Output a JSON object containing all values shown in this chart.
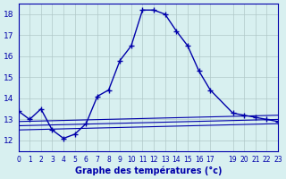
{
  "title": "Graphe des températures (°c)",
  "bg_color": "#d8f0f0",
  "grid_color": "#b0c8c8",
  "line_color": "#0000aa",
  "xlim": [
    0,
    23
  ],
  "ylim": [
    11.5,
    18.5
  ],
  "yticks": [
    12,
    13,
    14,
    15,
    16,
    17,
    18
  ],
  "xticks": [
    0,
    1,
    2,
    3,
    4,
    5,
    6,
    7,
    8,
    9,
    10,
    11,
    12,
    13,
    14,
    15,
    16,
    17,
    19,
    20,
    21,
    22,
    23
  ],
  "xtick_labels": [
    "0",
    "1",
    "2",
    "3",
    "4",
    "5",
    "6",
    "7",
    "8",
    "9",
    "10",
    "11",
    "12",
    "13",
    "14",
    "15",
    "16",
    "17",
    "19",
    "20",
    "21",
    "22",
    "23"
  ],
  "temp_x": [
    0,
    1,
    2,
    3,
    4,
    5,
    6,
    7,
    8,
    9,
    10,
    11,
    12,
    13,
    14,
    15,
    16,
    17,
    19,
    20,
    21,
    22,
    23
  ],
  "temp_y": [
    13.4,
    13.0,
    13.5,
    12.5,
    12.1,
    12.3,
    12.8,
    14.1,
    14.4,
    15.8,
    16.5,
    18.2,
    18.2,
    18.0,
    17.2,
    16.5,
    15.3,
    14.4,
    13.3,
    13.2,
    13.1,
    13.0,
    12.9
  ],
  "line1_x": [
    0,
    23
  ],
  "line1_y": [
    12.5,
    12.8
  ],
  "line2_x": [
    0,
    23
  ],
  "line2_y": [
    12.7,
    13.0
  ],
  "line3_x": [
    0,
    23
  ],
  "line3_y": [
    12.9,
    13.2
  ]
}
